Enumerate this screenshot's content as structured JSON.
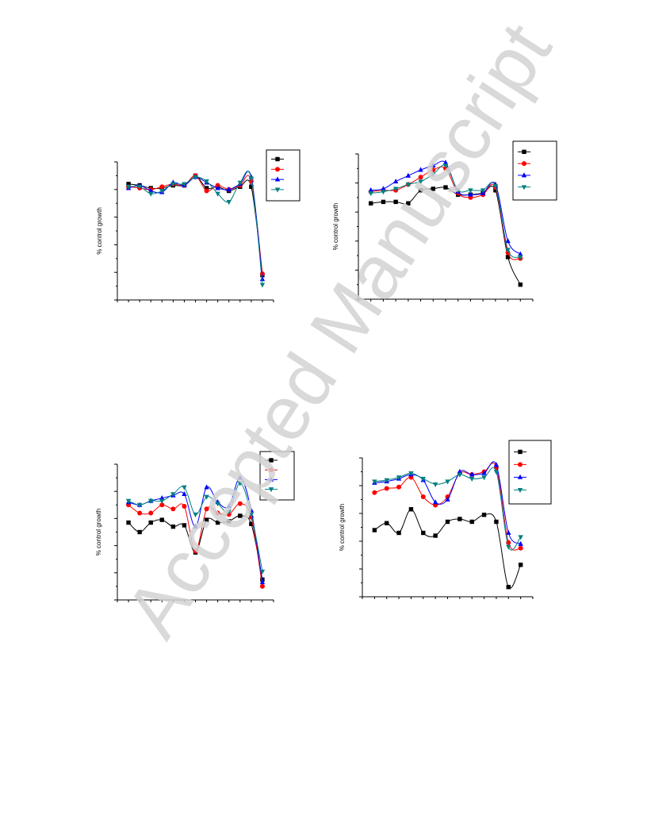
{
  "watermark": "Accepted Manuscript",
  "colors": {
    "s1": "#000000",
    "s2": "#ff0000",
    "s3": "#0000ff",
    "s4": "#008080"
  },
  "chart_data": [
    {
      "type": "line",
      "ylabel": "% control growth",
      "xlim": [
        0,
        14
      ],
      "ylim": [
        0,
        10
      ],
      "legend": "top-right",
      "series": [
        {
          "marker": "square",
          "color": "#000000",
          "x": [
            1,
            2,
            3,
            4,
            5,
            6,
            7,
            8,
            9,
            10,
            11,
            12,
            13
          ],
          "y": [
            8.4,
            8.3,
            8.1,
            8.1,
            8.3,
            8.3,
            9.0,
            8.1,
            8.2,
            7.9,
            8.2,
            8.2,
            1.8
          ]
        },
        {
          "marker": "circle",
          "color": "#ff0000",
          "x": [
            1,
            2,
            3,
            4,
            5,
            6,
            7,
            8,
            9,
            10,
            11,
            12,
            13
          ],
          "y": [
            8.2,
            8.1,
            8.0,
            8.2,
            8.4,
            8.3,
            9.0,
            7.9,
            8.3,
            8.0,
            8.3,
            8.6,
            1.9
          ]
        },
        {
          "marker": "triangle-up",
          "color": "#0000ff",
          "x": [
            1,
            2,
            3,
            4,
            5,
            6,
            7,
            8,
            9,
            10,
            11,
            12,
            13
          ],
          "y": [
            8.1,
            8.3,
            7.9,
            7.8,
            8.5,
            8.3,
            8.9,
            8.5,
            8.1,
            8.0,
            8.4,
            8.9,
            1.5
          ]
        },
        {
          "marker": "triangle-down",
          "color": "#008080",
          "x": [
            1,
            2,
            3,
            4,
            5,
            6,
            7,
            8,
            9,
            10,
            11,
            12,
            13
          ],
          "y": [
            8.2,
            8.2,
            7.7,
            7.9,
            8.4,
            8.4,
            8.9,
            8.6,
            7.7,
            7.1,
            8.5,
            8.8,
            1.1
          ]
        }
      ]
    },
    {
      "type": "line",
      "ylabel": "% control growth",
      "xlim": [
        0,
        14
      ],
      "ylim": [
        0,
        10
      ],
      "legend": "top-right",
      "series": [
        {
          "marker": "square",
          "color": "#000000",
          "x": [
            1,
            2,
            3,
            4,
            5,
            6,
            7,
            8,
            9,
            10,
            11,
            12,
            13
          ],
          "y": [
            6.6,
            6.7,
            6.7,
            6.6,
            7.5,
            7.6,
            7.7,
            7.2,
            7.2,
            7.3,
            7.5,
            2.9,
            1.0
          ]
        },
        {
          "marker": "circle",
          "color": "#ff0000",
          "x": [
            1,
            2,
            3,
            4,
            5,
            6,
            7,
            8,
            9,
            10,
            11,
            12,
            13
          ],
          "y": [
            7.4,
            7.5,
            7.5,
            7.9,
            8.4,
            8.9,
            9.0,
            7.3,
            7.0,
            7.2,
            7.7,
            3.2,
            2.8
          ]
        },
        {
          "marker": "triangle-up",
          "color": "#0000ff",
          "x": [
            1,
            2,
            3,
            4,
            5,
            6,
            7,
            8,
            9,
            10,
            11,
            12,
            13
          ],
          "y": [
            7.5,
            7.6,
            8.1,
            8.5,
            8.9,
            9.2,
            9.4,
            7.4,
            7.2,
            7.3,
            7.9,
            4.0,
            3.1
          ]
        },
        {
          "marker": "triangle-down",
          "color": "#008080",
          "x": [
            1,
            2,
            3,
            4,
            5,
            6,
            7,
            8,
            9,
            10,
            11,
            12,
            13
          ],
          "y": [
            7.3,
            7.4,
            7.6,
            7.9,
            8.1,
            8.6,
            9.2,
            7.5,
            7.5,
            7.5,
            7.8,
            3.4,
            2.9
          ]
        }
      ]
    },
    {
      "type": "line",
      "ylabel": "% control growth",
      "xlim": [
        0,
        14
      ],
      "ylim": [
        0,
        10
      ],
      "legend": "top-right",
      "series": [
        {
          "marker": "square",
          "color": "#000000",
          "x": [
            1,
            2,
            3,
            4,
            5,
            6,
            7,
            8,
            9,
            10,
            11,
            12,
            13
          ],
          "y": [
            5.7,
            5.0,
            5.7,
            5.9,
            5.4,
            5.5,
            3.5,
            5.9,
            5.7,
            5.8,
            6.2,
            5.6,
            1.5
          ]
        },
        {
          "marker": "circle",
          "color": "#ff0000",
          "x": [
            1,
            2,
            3,
            4,
            5,
            6,
            7,
            8,
            9,
            10,
            11,
            12,
            13
          ],
          "y": [
            7.0,
            6.4,
            6.4,
            7.0,
            6.7,
            6.9,
            3.6,
            6.7,
            6.4,
            6.3,
            7.1,
            6.1,
            1.0
          ]
        },
        {
          "marker": "triangle-up",
          "color": "#0000ff",
          "x": [
            1,
            2,
            3,
            4,
            5,
            6,
            7,
            8,
            9,
            10,
            11,
            12,
            13
          ],
          "y": [
            7.2,
            7.0,
            7.3,
            7.5,
            7.7,
            7.8,
            5.4,
            8.3,
            7.2,
            6.9,
            9.0,
            6.6,
            1.3
          ]
        },
        {
          "marker": "triangle-down",
          "color": "#008080",
          "x": [
            1,
            2,
            3,
            4,
            5,
            6,
            7,
            8,
            9,
            10,
            11,
            12,
            13
          ],
          "y": [
            7.3,
            7.0,
            7.3,
            7.3,
            7.8,
            8.3,
            6.3,
            7.6,
            7.1,
            6.5,
            8.6,
            6.3,
            2.1
          ]
        }
      ]
    },
    {
      "type": "line",
      "ylabel": "% control growth",
      "xlim": [
        0,
        14
      ],
      "ylim": [
        0,
        10
      ],
      "legend": "top-right",
      "series": [
        {
          "marker": "square",
          "color": "#000000",
          "x": [
            1,
            2,
            3,
            4,
            5,
            6,
            7,
            8,
            9,
            10,
            11,
            12,
            13
          ],
          "y": [
            4.8,
            5.3,
            4.6,
            6.3,
            4.6,
            4.4,
            5.4,
            5.6,
            5.4,
            5.9,
            5.4,
            0.7,
            2.3
          ]
        },
        {
          "marker": "circle",
          "color": "#ff0000",
          "x": [
            1,
            2,
            3,
            4,
            5,
            6,
            7,
            8,
            9,
            10,
            11,
            12,
            13
          ],
          "y": [
            7.5,
            7.8,
            7.9,
            8.6,
            7.2,
            6.6,
            7.2,
            8.9,
            8.8,
            9.0,
            9.3,
            3.9,
            3.5
          ]
        },
        {
          "marker": "triangle-up",
          "color": "#0000ff",
          "x": [
            1,
            2,
            3,
            4,
            5,
            6,
            7,
            8,
            9,
            10,
            11,
            12,
            13
          ],
          "y": [
            8.2,
            8.3,
            8.5,
            8.8,
            8.4,
            6.8,
            7.0,
            9.0,
            8.8,
            8.9,
            9.5,
            4.6,
            3.8
          ]
        },
        {
          "marker": "triangle-down",
          "color": "#008080",
          "x": [
            1,
            2,
            3,
            4,
            5,
            6,
            7,
            8,
            9,
            10,
            11,
            12,
            13
          ],
          "y": [
            8.3,
            8.4,
            8.6,
            8.9,
            8.5,
            8.1,
            8.3,
            8.8,
            8.5,
            8.6,
            9.0,
            3.6,
            4.3
          ]
        }
      ]
    }
  ]
}
